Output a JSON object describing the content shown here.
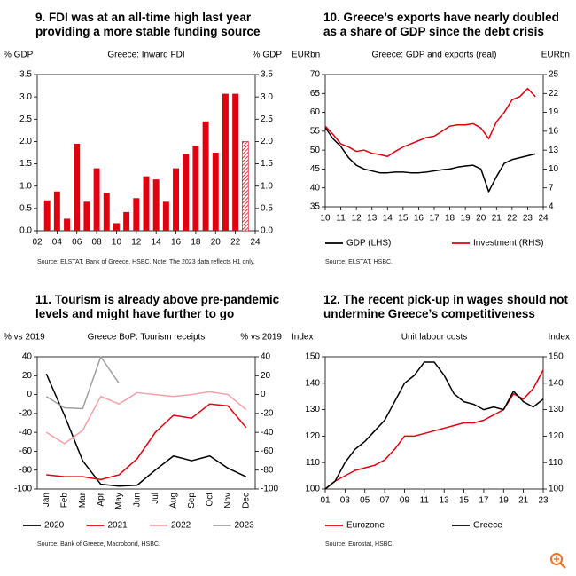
{
  "chart_data": [
    {
      "type": "bar",
      "title": "9. FDI was at an all-time high last year providing a more stable funding source",
      "subtitle": "Greece: Inward FDI",
      "ylabel": "% GDP",
      "y2label": "% GDP",
      "source": "Source: ELSTAT, Bank of Greece, HSBC. Note: The 2023 data reflects H1 only.",
      "x": [
        2003,
        2004,
        2005,
        2006,
        2007,
        2008,
        2009,
        2010,
        2011,
        2012,
        2013,
        2014,
        2015,
        2016,
        2017,
        2018,
        2019,
        2020,
        2021,
        2022,
        2023
      ],
      "values": [
        0.68,
        0.88,
        0.27,
        1.95,
        0.65,
        1.4,
        0.85,
        0.17,
        0.42,
        0.73,
        1.22,
        1.15,
        0.65,
        1.4,
        1.72,
        1.9,
        2.45,
        1.75,
        3.07,
        3.07,
        2.0
      ],
      "color": "#e0000f",
      "hatch_last": true,
      "xlim": [
        2002,
        2024
      ],
      "xticks": [
        {
          "value": 2002,
          "label": "02"
        },
        {
          "value": 2004,
          "label": "04"
        },
        {
          "value": 2006,
          "label": "06"
        },
        {
          "value": 2008,
          "label": "08"
        },
        {
          "value": 2010,
          "label": "10"
        },
        {
          "value": 2012,
          "label": "12"
        },
        {
          "value": 2014,
          "label": "14"
        },
        {
          "value": 2016,
          "label": "16"
        },
        {
          "value": 2018,
          "label": "18"
        },
        {
          "value": 2020,
          "label": "20"
        },
        {
          "value": 2022,
          "label": "22"
        },
        {
          "value": 2024,
          "label": "24"
        }
      ],
      "ylim": [
        0,
        3.5
      ],
      "yticks": [
        {
          "value": 0,
          "label": "0.0"
        },
        {
          "value": 0.5,
          "label": "0.5"
        },
        {
          "value": 1,
          "label": "1.0"
        },
        {
          "value": 1.5,
          "label": "1.5"
        },
        {
          "value": 2,
          "label": "2.0"
        },
        {
          "value": 2.5,
          "label": "2.5"
        },
        {
          "value": 3,
          "label": "3.0"
        },
        {
          "value": 3.5,
          "label": "3.5"
        }
      ],
      "y2lim": [
        0,
        3.5
      ],
      "y2ticks": [
        {
          "value": 0,
          "label": "0.0"
        },
        {
          "value": 0.5,
          "label": "0.5"
        },
        {
          "value": 1,
          "label": "1.0"
        },
        {
          "value": 1.5,
          "label": "1.5"
        },
        {
          "value": 2,
          "label": "2.0"
        },
        {
          "value": 2.5,
          "label": "2.5"
        },
        {
          "value": 3,
          "label": "3.0"
        },
        {
          "value": 3.5,
          "label": "3.5"
        }
      ]
    },
    {
      "type": "line",
      "title": "10. Greece’s exports have nearly doubled as a share of GDP since the debt crisis",
      "subtitle": "Greece: GDP and exports (real)",
      "ylabel": "EURbn",
      "y2label": "EURbn",
      "source": "Source: ELSTAT, HSBC.",
      "x": [
        2010,
        2010.5,
        2011,
        2011.5,
        2012,
        2012.5,
        2013,
        2013.5,
        2014,
        2014.5,
        2015,
        2015.5,
        2016,
        2016.5,
        2017,
        2017.5,
        2018,
        2018.5,
        2019,
        2019.5,
        2020,
        2020.5,
        2021,
        2021.5,
        2022,
        2022.5,
        2023,
        2023.5
      ],
      "series": [
        {
          "name": "GDP (LHS)",
          "color": "#000000",
          "values": [
            56,
            53,
            51,
            48,
            46,
            45,
            44.5,
            44,
            44,
            44.2,
            44.2,
            44,
            44,
            44.2,
            44.5,
            44.8,
            45,
            45.5,
            45.8,
            46,
            45,
            39,
            43,
            46.5,
            47.5,
            48,
            48.5,
            49
          ]
        },
        {
          "name": "Investment (RHS)",
          "color": "#e0000f",
          "axis": "y2",
          "values": [
            16.8,
            15.5,
            14,
            13.5,
            12.8,
            13,
            12.5,
            12.3,
            12,
            12.8,
            13.5,
            14,
            14.5,
            15,
            15.2,
            16,
            16.8,
            17,
            17,
            17.2,
            16.5,
            14.8,
            17.5,
            19,
            21,
            21.5,
            22.8,
            21.5
          ]
        }
      ],
      "legend": "bottom",
      "xlim": [
        2010,
        2024
      ],
      "xticks": [
        {
          "value": 2010,
          "label": "10"
        },
        {
          "value": 2011,
          "label": "11"
        },
        {
          "value": 2012,
          "label": "12"
        },
        {
          "value": 2013,
          "label": "13"
        },
        {
          "value": 2014,
          "label": "14"
        },
        {
          "value": 2015,
          "label": "15"
        },
        {
          "value": 2016,
          "label": "16"
        },
        {
          "value": 2017,
          "label": "17"
        },
        {
          "value": 2018,
          "label": "18"
        },
        {
          "value": 2019,
          "label": "19"
        },
        {
          "value": 2020,
          "label": "20"
        },
        {
          "value": 2021,
          "label": "21"
        },
        {
          "value": 2022,
          "label": "22"
        },
        {
          "value": 2023,
          "label": "23"
        },
        {
          "value": 2024,
          "label": "24"
        }
      ],
      "ylim": [
        35,
        70
      ],
      "yticks": [
        35,
        40,
        45,
        50,
        55,
        60,
        65,
        70
      ],
      "y2lim": [
        4,
        25
      ],
      "y2ticks": [
        4,
        7,
        10,
        13,
        16,
        19,
        22,
        25
      ]
    },
    {
      "type": "line",
      "title": "11. Tourism is already above pre-pandemic levels and might have further to go",
      "subtitle": "Greece BoP: Tourism receipts",
      "ylabel": "% vs 2019",
      "y2label": "% vs 2019",
      "source": "Source: Bank of Greece, Macrobond, HSBC.",
      "categories": [
        "Jan",
        "Feb",
        "Mar",
        "Apr",
        "May",
        "Jun",
        "Jul",
        "Aug",
        "Sep",
        "Oct",
        "Nov",
        "Dec"
      ],
      "series": [
        {
          "name": "2020",
          "color": "#000000",
          "values": [
            22,
            -22,
            -70,
            -95,
            -97,
            -96,
            -80,
            -65,
            -70,
            -65,
            -78,
            -87
          ]
        },
        {
          "name": "2021",
          "color": "#e0000f",
          "values": [
            -85,
            -87,
            -87,
            -90,
            -85,
            -68,
            -40,
            -22,
            -25,
            -10,
            -12,
            -35
          ]
        },
        {
          "name": "2022",
          "color": "#f4a0a8",
          "values": [
            -40,
            -52,
            -38,
            -2,
            -10,
            2,
            0,
            -2,
            0,
            3,
            0,
            -16
          ]
        },
        {
          "name": "2023",
          "color": "#a0a0a0",
          "values": [
            -2,
            -14,
            -15,
            40,
            12,
            null,
            null,
            null,
            null,
            null,
            null,
            null
          ]
        }
      ],
      "legend": "bottom",
      "ylim": [
        -100,
        40
      ],
      "yticks": [
        -100,
        -80,
        -60,
        -40,
        -20,
        0,
        20,
        40
      ],
      "y2lim": [
        -100,
        40
      ],
      "y2ticks": [
        -100,
        -80,
        -60,
        -40,
        -20,
        0,
        20,
        40
      ]
    },
    {
      "type": "line",
      "title": "12. The recent pick-up in wages should not undermine Greece’s competitiveness",
      "subtitle": "Unit labour costs",
      "ylabel": "Index",
      "y2label": "Index",
      "source": "Source: Eurostat, HSBC.",
      "x": [
        2001,
        2002,
        2003,
        2004,
        2005,
        2006,
        2007,
        2008,
        2009,
        2010,
        2011,
        2012,
        2013,
        2014,
        2015,
        2016,
        2017,
        2018,
        2019,
        2020,
        2021,
        2022,
        2023
      ],
      "series": [
        {
          "name": "Eurozone",
          "color": "#e0000f",
          "values": [
            100,
            103,
            105,
            107,
            108,
            109,
            111,
            115,
            120,
            120,
            121,
            122,
            123,
            124,
            125,
            125,
            126,
            128,
            130,
            136,
            134,
            138,
            145
          ]
        },
        {
          "name": "Greece",
          "color": "#000000",
          "values": [
            100,
            103,
            110,
            115,
            118,
            122,
            126,
            133,
            140,
            143,
            148,
            148,
            143,
            136,
            133,
            132,
            130,
            131,
            130,
            137,
            133,
            131,
            134
          ]
        }
      ],
      "legend": "bottom",
      "xlim": [
        2001,
        2023
      ],
      "xticks": [
        {
          "value": 2001,
          "label": "01"
        },
        {
          "value": 2003,
          "label": "03"
        },
        {
          "value": 2005,
          "label": "05"
        },
        {
          "value": 2007,
          "label": "07"
        },
        {
          "value": 2009,
          "label": "09"
        },
        {
          "value": 2011,
          "label": "11"
        },
        {
          "value": 2013,
          "label": "13"
        },
        {
          "value": 2015,
          "label": "15"
        },
        {
          "value": 2017,
          "label": "17"
        },
        {
          "value": 2019,
          "label": "19"
        },
        {
          "value": 2021,
          "label": "21"
        },
        {
          "value": 2023,
          "label": "23"
        }
      ],
      "ylim": [
        100,
        150
      ],
      "yticks": [
        100,
        110,
        120,
        130,
        140,
        150
      ],
      "y2lim": [
        100,
        150
      ],
      "y2ticks": [
        100,
        110,
        120,
        130,
        140,
        150
      ]
    }
  ]
}
